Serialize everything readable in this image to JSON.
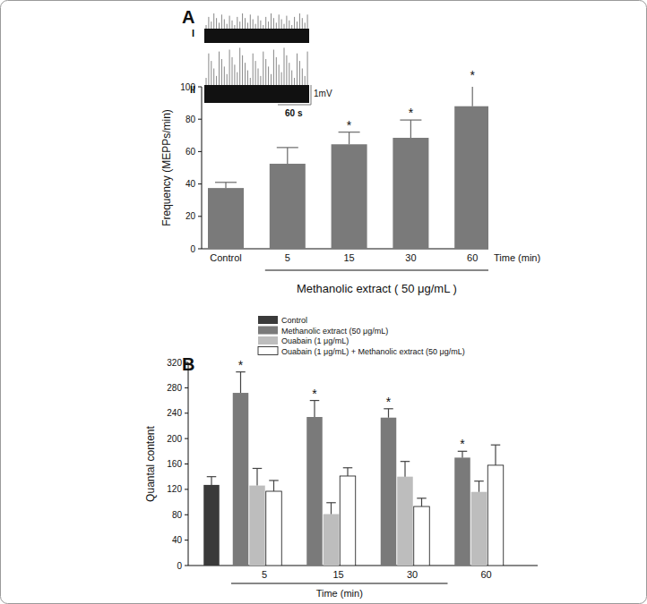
{
  "chart_data": [
    {
      "type": "bar",
      "title": "A",
      "categories": [
        "Control",
        "5",
        "15",
        "30",
        "60"
      ],
      "values": [
        37.5,
        52.5,
        64.5,
        68.5,
        88
      ],
      "errors": [
        3.5,
        10,
        7.5,
        11,
        15
      ],
      "significance": [
        null,
        null,
        "*",
        "*",
        "*"
      ],
      "color": "#7a7a7a",
      "ylim": [
        0,
        100
      ],
      "yticks": [
        0,
        20,
        40,
        60,
        80,
        100
      ],
      "y_label": "Frequency (MEPPs/min)",
      "x_label": "Time (min)",
      "group_label": "Methanolic extract ( 50 μg/mL )",
      "annotations": [
        "I",
        "II",
        "1mV",
        "60 s"
      ]
    },
    {
      "type": "bar",
      "title": "B",
      "categories": [
        null,
        "5",
        "15",
        "30",
        "60"
      ],
      "series": [
        {
          "name": "Control",
          "color": "#3a3a3a",
          "values": [
            127,
            null,
            null,
            null,
            null
          ],
          "errors": [
            13,
            null,
            null,
            null,
            null
          ],
          "significance": [
            null,
            null,
            null,
            null,
            null
          ]
        },
        {
          "name": "Methanolic extract (50 μg/mL)",
          "color": "#7a7a7a",
          "values": [
            null,
            272,
            234,
            233,
            170
          ],
          "errors": [
            null,
            33,
            26,
            14,
            10
          ],
          "significance": [
            null,
            "*",
            "*",
            "*",
            "*"
          ]
        },
        {
          "name": "Ouabain (1 μg/mL)",
          "color": "#bdbdbd",
          "values": [
            null,
            126,
            81,
            140,
            116
          ],
          "errors": [
            null,
            27,
            18,
            24,
            17
          ],
          "significance": [
            null,
            null,
            null,
            null,
            null
          ]
        },
        {
          "name": "Ouabain (1 μg/mL) + Methanolic extract (50 μg/mL)",
          "color": "#ffffff",
          "values": [
            null,
            117,
            141,
            93,
            158
          ],
          "errors": [
            null,
            17,
            13,
            13,
            32
          ],
          "significance": [
            null,
            null,
            null,
            null,
            null
          ]
        }
      ],
      "ylim": [
        0,
        320
      ],
      "yticks": [
        0,
        40,
        80,
        120,
        160,
        200,
        240,
        280,
        320
      ],
      "y_label": "Quantal content",
      "x_label": "Time (min)",
      "legend": "top"
    }
  ]
}
